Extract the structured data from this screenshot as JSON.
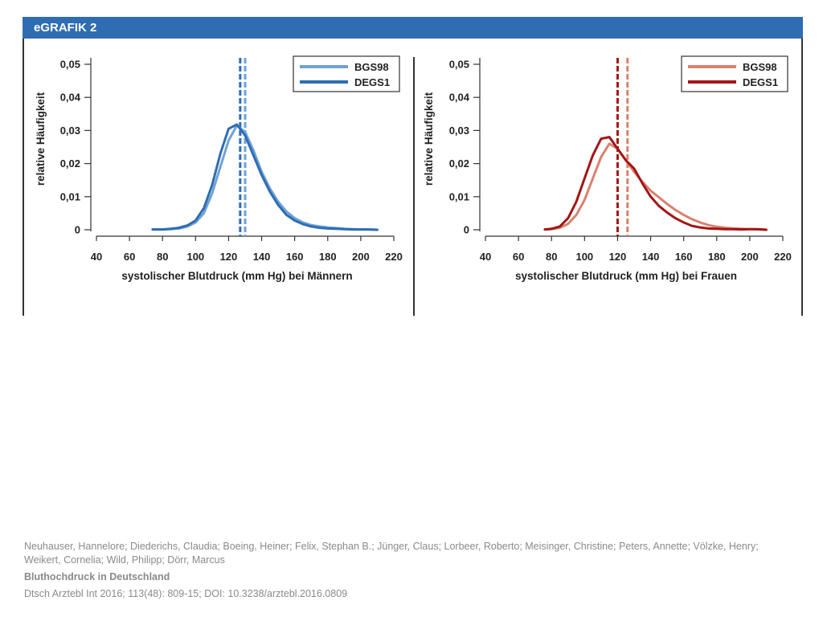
{
  "header": {
    "title": "eGRAFIK 2",
    "color": "#2f6db3"
  },
  "chart_data": [
    {
      "type": "line",
      "xlabel": "systolischer Blutdruck (mm Hg) bei Männern",
      "ylabel": "relative Häufigkeit",
      "xlim": [
        40,
        220
      ],
      "ylim": [
        0,
        0.05
      ],
      "xticks": [
        "40",
        "60",
        "80",
        "100",
        "120",
        "140",
        "160",
        "180",
        "200",
        "220"
      ],
      "yticks": [
        "0",
        "0,01",
        "0,02",
        "0,03",
        "0,04",
        "0,05"
      ],
      "legend_position": "top-right",
      "series": [
        {
          "name": "BGS98",
          "color": "#6fa3d6",
          "mean": 130,
          "x": [
            74,
            80,
            85,
            90,
            95,
            100,
            105,
            110,
            115,
            120,
            125,
            130,
            135,
            140,
            145,
            150,
            155,
            160,
            165,
            170,
            175,
            180,
            185,
            190,
            195,
            200,
            205,
            210
          ],
          "y": [
            0.0001,
            0.0001,
            0.0002,
            0.0004,
            0.001,
            0.0022,
            0.005,
            0.011,
            0.019,
            0.027,
            0.0315,
            0.0295,
            0.024,
            0.0175,
            0.0125,
            0.0085,
            0.0055,
            0.0035,
            0.0022,
            0.0014,
            0.001,
            0.0007,
            0.0005,
            0.0003,
            0.0002,
            0.0001,
            0.0001,
            0.0
          ]
        },
        {
          "name": "DEGS1",
          "color": "#2f6db3",
          "mean": 127,
          "x": [
            74,
            80,
            85,
            90,
            95,
            100,
            105,
            110,
            115,
            120,
            125,
            130,
            135,
            140,
            145,
            150,
            155,
            160,
            165,
            170,
            175,
            180,
            185,
            190,
            195,
            200,
            205,
            210
          ],
          "y": [
            0.0001,
            0.0001,
            0.0003,
            0.0006,
            0.0013,
            0.0028,
            0.0065,
            0.0135,
            0.023,
            0.0305,
            0.0318,
            0.0285,
            0.0225,
            0.0165,
            0.0115,
            0.0075,
            0.0045,
            0.0028,
            0.0017,
            0.001,
            0.0006,
            0.0004,
            0.0003,
            0.0002,
            0.0001,
            0.0001,
            0.0001,
            0.0
          ]
        }
      ]
    },
    {
      "type": "line",
      "xlabel": "systolischer Blutdruck (mm Hg) bei Frauen",
      "ylabel": "relative Häufigkeit",
      "xlim": [
        40,
        220
      ],
      "ylim": [
        0,
        0.05
      ],
      "xticks": [
        "40",
        "60",
        "80",
        "100",
        "120",
        "140",
        "160",
        "180",
        "200",
        "220"
      ],
      "yticks": [
        "0",
        "0,01",
        "0,02",
        "0,03",
        "0,04",
        "0,05"
      ],
      "legend_position": "top-right",
      "series": [
        {
          "name": "BGS98",
          "color": "#d9826e",
          "mean": 126,
          "x": [
            76,
            80,
            85,
            90,
            95,
            100,
            105,
            110,
            115,
            120,
            125,
            130,
            135,
            140,
            145,
            150,
            155,
            160,
            165,
            170,
            175,
            180,
            185,
            190,
            195,
            200,
            205,
            210
          ],
          "y": [
            0.0001,
            0.0002,
            0.0006,
            0.0018,
            0.0045,
            0.009,
            0.0155,
            0.022,
            0.026,
            0.0245,
            0.021,
            0.0175,
            0.0145,
            0.0118,
            0.0098,
            0.0078,
            0.006,
            0.0045,
            0.0032,
            0.0022,
            0.0014,
            0.0009,
            0.0006,
            0.0004,
            0.0003,
            0.0002,
            0.0001,
            0.0
          ]
        },
        {
          "name": "DEGS1",
          "color": "#a31616",
          "mean": 120,
          "x": [
            76,
            80,
            85,
            90,
            95,
            100,
            105,
            110,
            115,
            120,
            125,
            130,
            135,
            140,
            145,
            150,
            155,
            160,
            165,
            170,
            175,
            180,
            185,
            190,
            195,
            200,
            205,
            210
          ],
          "y": [
            0.0001,
            0.0003,
            0.001,
            0.0035,
            0.0085,
            0.0155,
            0.0225,
            0.0275,
            0.028,
            0.0245,
            0.021,
            0.0185,
            0.014,
            0.01,
            0.0072,
            0.0052,
            0.0035,
            0.0022,
            0.0012,
            0.0007,
            0.0004,
            0.0003,
            0.0002,
            0.0002,
            0.0001,
            0.0002,
            0.0002,
            0.0
          ]
        }
      ]
    }
  ],
  "citation": {
    "authors": "Neuhauser, Hannelore; Diederichs, Claudia; Boeing, Heiner; Felix, Stephan B.; Jünger, Claus; Lorbeer, Roberto; Meisinger, Christine; Peters, Annette; Völzke, Henry; Weikert, Cornelia; Wild, Philipp; Dörr, Marcus",
    "title": "Bluthochdruck in Deutschland",
    "source": "Dtsch Arztebl Int 2016; 113(48): 809-15; DOI: 10.3238/arztebl.2016.0809"
  }
}
